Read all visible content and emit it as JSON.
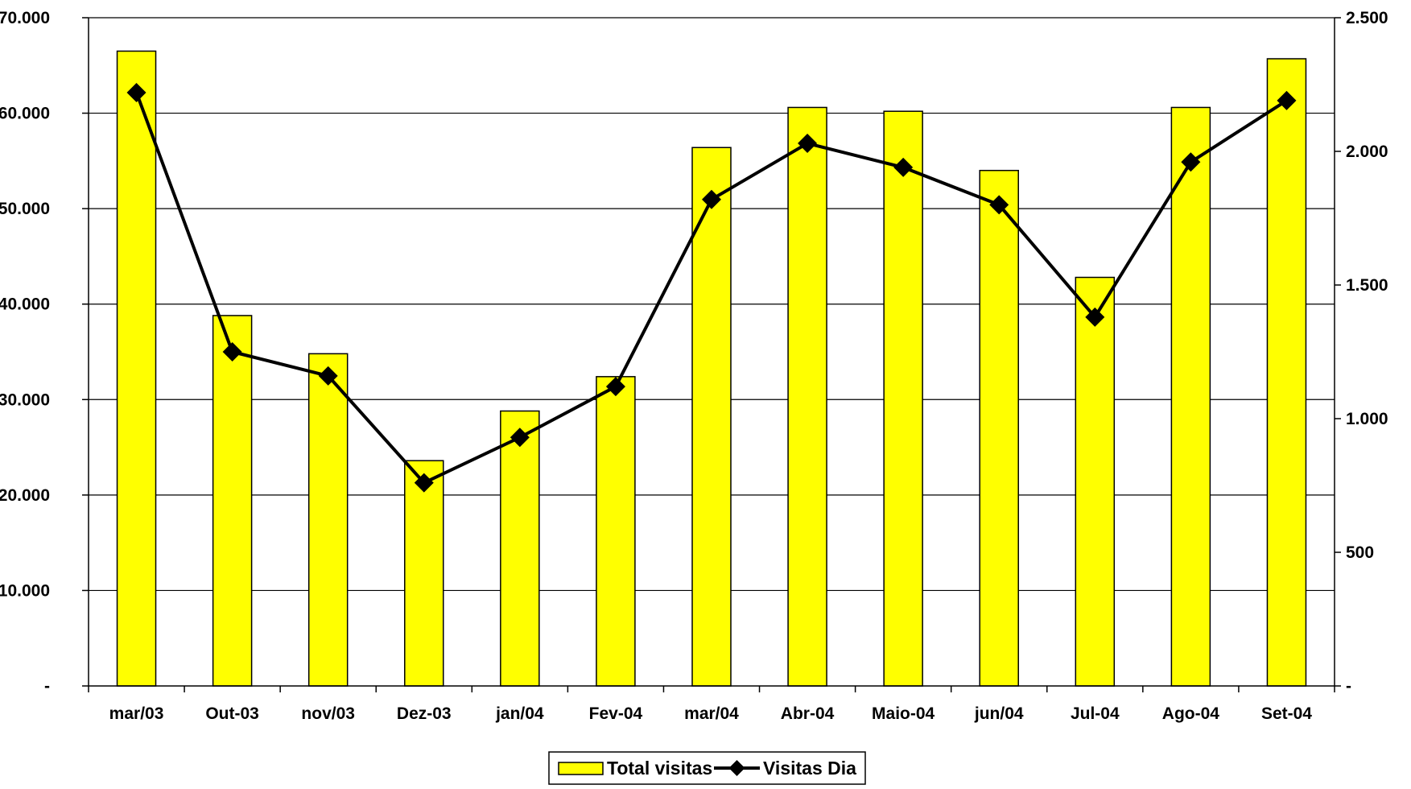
{
  "chart_data": {
    "type": "bar",
    "title": "",
    "xlabel": "",
    "ylabel": "",
    "y2label": "",
    "categories": [
      "mar/03",
      "Out-03",
      "nov/03",
      "Dez-03",
      "jan/04",
      "Fev-04",
      "mar/04",
      "Abr-04",
      "Maio-04",
      "jun/04",
      "Jul-04",
      "Ago-04",
      "Set-04"
    ],
    "series": [
      {
        "name": "Total visitas",
        "type": "bar",
        "axis": "left",
        "color": "#FFFF00",
        "values": [
          66500,
          38800,
          34800,
          23600,
          28800,
          32400,
          56400,
          60600,
          60200,
          54000,
          42800,
          60600,
          65700
        ]
      },
      {
        "name": "Visitas Dia",
        "type": "line",
        "axis": "right",
        "color": "#000000",
        "marker": "diamond",
        "values": [
          2220,
          1250,
          1160,
          760,
          930,
          1120,
          1820,
          2030,
          1940,
          1800,
          1380,
          1960,
          2190
        ]
      }
    ],
    "ylim": [
      0,
      70000
    ],
    "y2lim": [
      0,
      2500
    ],
    "yticks": [
      0,
      10000,
      20000,
      30000,
      40000,
      50000,
      60000,
      70000
    ],
    "ytick_labels": [
      "-",
      "10.000",
      "20.000",
      "30.000",
      "40.000",
      "50.000",
      "60.000",
      "70.000"
    ],
    "y2ticks": [
      0,
      500,
      1000,
      1500,
      2000,
      2500
    ],
    "y2tick_labels": [
      "-",
      "500",
      "1.000",
      "1.500",
      "2.000",
      "2.500"
    ],
    "grid": true,
    "legend_position": "bottom-center"
  }
}
